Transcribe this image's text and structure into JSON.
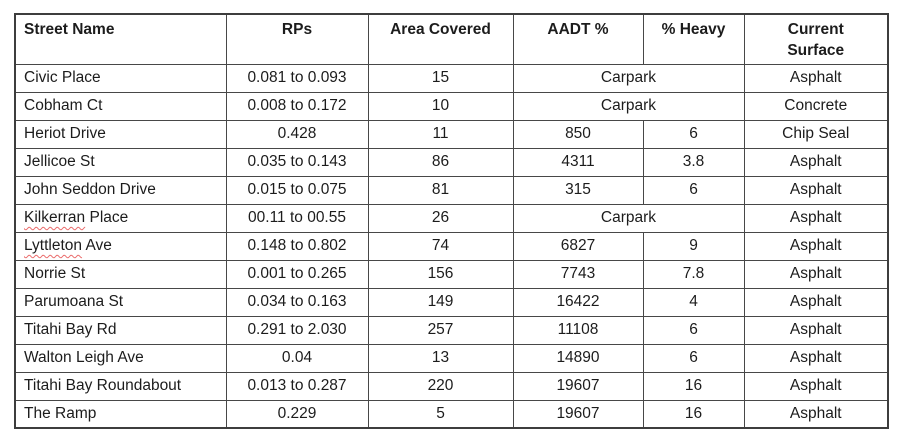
{
  "table": {
    "columns": [
      {
        "label": "Street Name",
        "align": "left"
      },
      {
        "label": "RPs",
        "align": "center"
      },
      {
        "label": "Area Covered",
        "align": "center"
      },
      {
        "label": "AADT %",
        "align": "center"
      },
      {
        "label": "% Heavy",
        "align": "center"
      },
      {
        "label": "Current Surface",
        "align": "center",
        "two_line": true
      }
    ],
    "carpark_label": "Carpark",
    "spellcheck_color": "#ea6a6a",
    "rows": [
      {
        "street": "Civic Place",
        "rps": "0.081 to 0.093",
        "area": "15",
        "aadt": "Carpark",
        "heavy": null,
        "carpark": true,
        "surface": "Asphalt",
        "misspelled": null
      },
      {
        "street": "Cobham Ct",
        "rps": "0.008 to 0.172",
        "area": "10",
        "aadt": "Carpark",
        "heavy": null,
        "carpark": true,
        "surface": "Concrete",
        "misspelled": null
      },
      {
        "street": "Heriot Drive",
        "rps": "0.428",
        "area": "11",
        "aadt": "850",
        "heavy": "6",
        "carpark": false,
        "surface": "Chip Seal",
        "misspelled": null
      },
      {
        "street": "Jellicoe St",
        "rps": "0.035 to 0.143",
        "area": "86",
        "aadt": "4311",
        "heavy": "3.8",
        "carpark": false,
        "surface": "Asphalt",
        "misspelled": null
      },
      {
        "street": "John Seddon Drive",
        "rps": "0.015 to 0.075",
        "area": "81",
        "aadt": "315",
        "heavy": "6",
        "carpark": false,
        "surface": "Asphalt",
        "misspelled": null
      },
      {
        "street": "Kilkerran Place",
        "rps": "00.11 to 00.55",
        "area": "26",
        "aadt": "Carpark",
        "heavy": null,
        "carpark": true,
        "surface": "Asphalt",
        "misspelled": "Kilkerran"
      },
      {
        "street": "Lyttleton Ave",
        "rps": "0.148 to 0.802",
        "area": "74",
        "aadt": "6827",
        "heavy": "9",
        "carpark": false,
        "surface": "Asphalt",
        "misspelled": "Lyttleton"
      },
      {
        "street": "Norrie St",
        "rps": "0.001 to 0.265",
        "area": "156",
        "aadt": "7743",
        "heavy": "7.8",
        "carpark": false,
        "surface": "Asphalt",
        "misspelled": null
      },
      {
        "street": "Parumoana St",
        "rps": "0.034 to 0.163",
        "area": "149",
        "aadt": "16422",
        "heavy": "4",
        "carpark": false,
        "surface": "Asphalt",
        "misspelled": null
      },
      {
        "street": "Titahi Bay Rd",
        "rps": "0.291 to 2.030",
        "area": "257",
        "aadt": "11108",
        "heavy": "6",
        "carpark": false,
        "surface": "Asphalt",
        "misspelled": null
      },
      {
        "street": "Walton Leigh Ave",
        "rps": "0.04",
        "area": "13",
        "aadt": "14890",
        "heavy": "6",
        "carpark": false,
        "surface": "Asphalt",
        "misspelled": null
      },
      {
        "street": "Titahi Bay Roundabout",
        "rps": "0.013 to 0.287",
        "area": "220",
        "aadt": "19607",
        "heavy": "16",
        "carpark": false,
        "surface": "Asphalt",
        "misspelled": null
      },
      {
        "street": "The Ramp",
        "rps": "0.229",
        "area": "5",
        "aadt": "19607",
        "heavy": "16",
        "carpark": false,
        "surface": "Asphalt",
        "misspelled": null
      }
    ]
  }
}
